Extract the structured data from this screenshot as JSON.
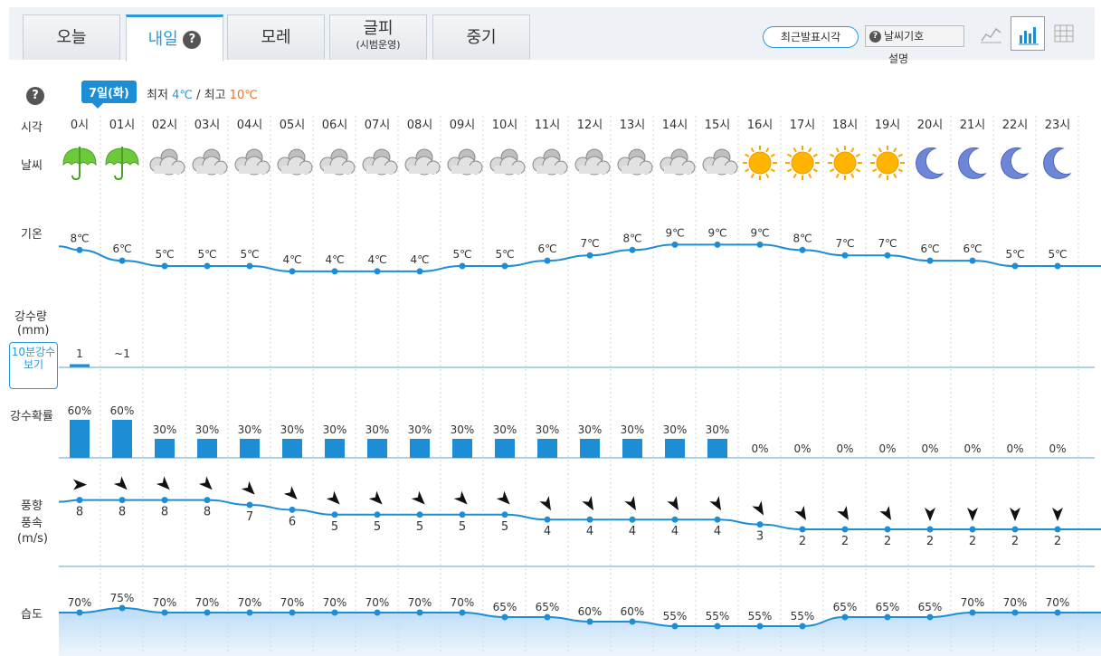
{
  "tabs": [
    {
      "label": "오늘",
      "sub": ""
    },
    {
      "label": "내일",
      "sub": ""
    },
    {
      "label": "모레",
      "sub": ""
    },
    {
      "label": "글피",
      "sub": "(시범운영)"
    },
    {
      "label": "중기",
      "sub": ""
    }
  ],
  "header": {
    "recent_button": "최근발표시각",
    "weather_symbol": "날씨기호",
    "weather_symbol_desc": "설명"
  },
  "date": {
    "badge": "7일(화)",
    "min_label": "최저",
    "min_value": "4℃",
    "sep": "/",
    "max_label": "최고",
    "max_value": "10℃"
  },
  "row_labels": {
    "time": "시각",
    "weather": "날씨",
    "temp": "기온",
    "precip": "강수량",
    "precip_unit": "(mm)",
    "precip_10min": "10분강수보기",
    "prob": "강수확률",
    "wind_dir": "풍향",
    "wind_speed": "풍속",
    "wind_unit": "(m/s)",
    "humidity": "습도"
  },
  "hours": [
    "0시",
    "01시",
    "02시",
    "03시",
    "04시",
    "05시",
    "06시",
    "07시",
    "08시",
    "09시",
    "10시",
    "11시",
    "12시",
    "13시",
    "14시",
    "15시",
    "16시",
    "17시",
    "18시",
    "19시",
    "20시",
    "21시",
    "22시",
    "23시"
  ],
  "weather_icons": [
    "umbrella-icon",
    "umbrella-icon",
    "cloudy-icon",
    "cloudy-icon",
    "cloudy-icon",
    "cloudy-icon",
    "cloudy-icon",
    "cloudy-icon",
    "cloudy-icon",
    "cloudy-icon",
    "cloudy-icon",
    "cloudy-icon",
    "cloudy-icon",
    "cloudy-icon",
    "cloudy-icon",
    "cloudy-icon",
    "sun-icon",
    "sun-icon",
    "sun-icon",
    "sun-icon",
    "moon-icon",
    "moon-icon",
    "moon-icon",
    "moon-icon"
  ],
  "temperatures": [
    8,
    6,
    5,
    5,
    5,
    4,
    4,
    4,
    4,
    5,
    5,
    6,
    7,
    8,
    9,
    9,
    9,
    8,
    7,
    7,
    6,
    6,
    5,
    5
  ],
  "temp_unit": "℃",
  "precip_amounts": [
    "1",
    "~1"
  ],
  "precip_prob": [
    60,
    60,
    30,
    30,
    30,
    30,
    30,
    30,
    30,
    30,
    30,
    30,
    30,
    30,
    30,
    30,
    0,
    0,
    0,
    0,
    0,
    0,
    0,
    0
  ],
  "wind_dir_deg": [
    90,
    135,
    135,
    135,
    135,
    135,
    135,
    135,
    135,
    135,
    135,
    150,
    150,
    150,
    150,
    150,
    150,
    150,
    150,
    150,
    180,
    180,
    180,
    180
  ],
  "wind_speed": [
    8,
    8,
    8,
    8,
    7,
    6,
    5,
    5,
    5,
    5,
    5,
    4,
    4,
    4,
    4,
    4,
    3,
    2,
    2,
    2,
    2,
    2,
    2,
    2
  ],
  "humidity": [
    70,
    75,
    70,
    70,
    70,
    70,
    70,
    70,
    70,
    70,
    65,
    65,
    60,
    60,
    55,
    55,
    55,
    55,
    65,
    65,
    65,
    70,
    70,
    70
  ],
  "colors": {
    "accent": "#1d8ed5",
    "bar": "#1d8ed5",
    "hot": "#e0762f",
    "cold": "#2a9bd8"
  }
}
